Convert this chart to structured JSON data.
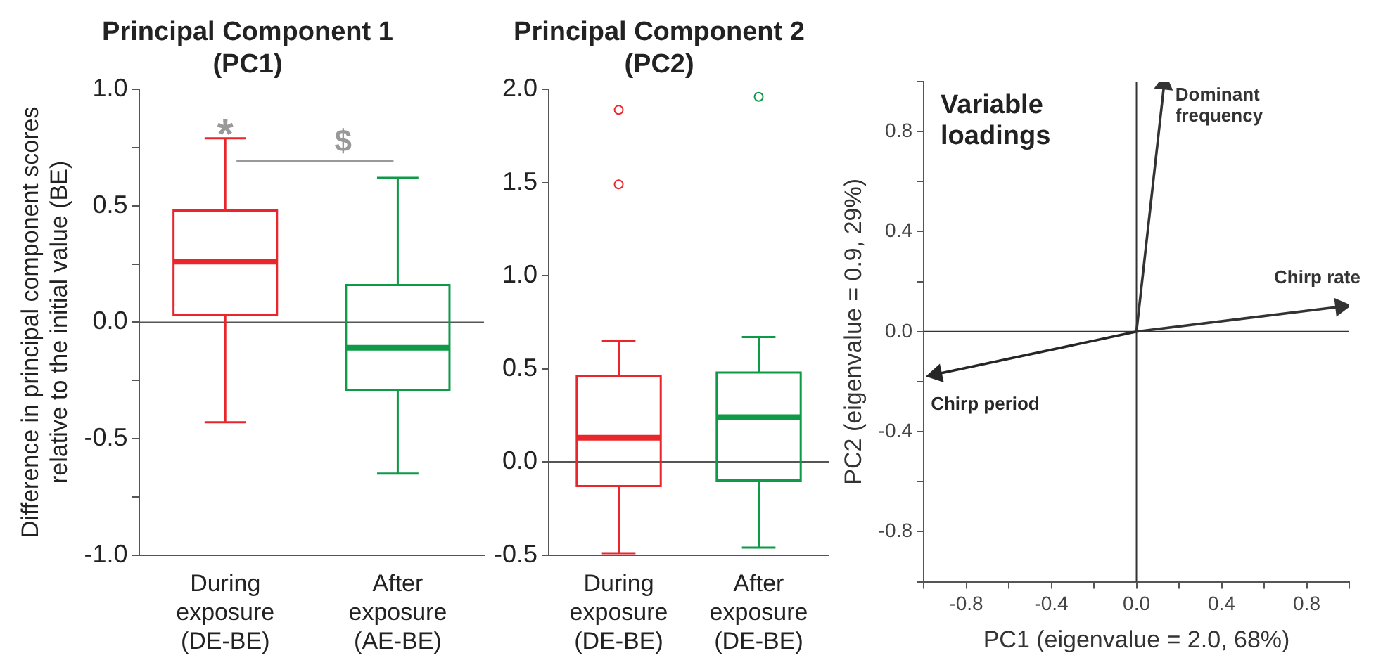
{
  "chart_data": [
    {
      "type": "box",
      "title": "Principal Component 1 (PC1)",
      "ylabel": "Difference in principal component scores relative to the initial value (BE)",
      "categories": [
        "During exposure (DE-BE)",
        "After exposure (AE-BE)"
      ],
      "colors": [
        "#e8262b",
        "#0f9a48"
      ],
      "boxes": [
        {
          "low": -0.43,
          "q1": 0.03,
          "median": 0.26,
          "q3": 0.48,
          "high": 0.79
        },
        {
          "low": -0.65,
          "q1": -0.29,
          "median": -0.11,
          "q3": 0.16,
          "high": 0.62
        }
      ],
      "ylim": [
        -1.0,
        1.0
      ],
      "yticks": [
        {
          "value": -1,
          "label": "-1.0"
        },
        {
          "value": -0.75,
          "label": null
        },
        {
          "value": -0.5,
          "label": "-0.5"
        },
        {
          "value": -0.25,
          "label": null
        },
        {
          "value": 0,
          "label": "0.0"
        },
        {
          "value": 0.25,
          "label": null
        },
        {
          "value": 0.5,
          "label": "0.5"
        },
        {
          "value": 0.75,
          "label": null
        },
        {
          "value": 1,
          "label": "1.0"
        }
      ],
      "ref_lines": [
        {
          "axis": "y",
          "value": 0,
          "color": "#555555"
        }
      ],
      "annotations": [
        "*",
        "$"
      ],
      "grid": false,
      "legend": false
    },
    {
      "type": "box",
      "title": "Principal Component 2 (PC2)",
      "categories": [
        "During exposure (DE-BE)",
        "After exposure (DE-BE)"
      ],
      "colors": [
        "#e8262b",
        "#0f9a48"
      ],
      "boxes": [
        {
          "low": -0.49,
          "q1": -0.13,
          "median": 0.13,
          "q3": 0.46,
          "high": 0.65,
          "outliers": [
            1.49,
            1.89
          ]
        },
        {
          "low": -0.46,
          "q1": -0.1,
          "median": 0.24,
          "q3": 0.48,
          "high": 0.67,
          "outliers": [
            1.96
          ]
        }
      ],
      "ylim": [
        -0.5,
        2.0
      ],
      "yticks": [
        {
          "value": -0.5,
          "label": "-0.5"
        },
        {
          "value": 0,
          "label": "0.0"
        },
        {
          "value": 0.5,
          "label": "0.5"
        },
        {
          "value": 1,
          "label": "1.0"
        },
        {
          "value": 1.5,
          "label": "1.5"
        },
        {
          "value": 2,
          "label": "2.0"
        }
      ],
      "ref_lines": [
        {
          "axis": "y",
          "value": 0,
          "color": "#555555"
        }
      ],
      "grid": false,
      "legend": false
    },
    {
      "type": "line",
      "title": "Variable loadings",
      "xlabel": "PC1 (eigenvalue = 2.0, 68%)",
      "ylabel": "PC2 (eigenvalue = 0.9, 29%)",
      "series": [
        {
          "name": "Chirp rate",
          "color": "#333333",
          "x": [
            0,
            0.96
          ],
          "values": [
            0,
            0.1
          ]
        },
        {
          "name": "Dominant frequency",
          "color": "#333333",
          "x": [
            0,
            0.13
          ],
          "values": [
            0,
            0.99
          ]
        },
        {
          "name": "Chirp period",
          "color": "#262626",
          "x": [
            0,
            -0.94
          ],
          "values": [
            0,
            -0.17
          ]
        }
      ],
      "xlim": [
        -1,
        1
      ],
      "xticks": [
        {
          "value": -1,
          "label": null
        },
        {
          "value": -0.8,
          "label": "-0.8"
        },
        {
          "value": -0.6,
          "label": null
        },
        {
          "value": -0.4,
          "label": "-0.4"
        },
        {
          "value": -0.2,
          "label": null
        },
        {
          "value": 0,
          "label": "0.0"
        },
        {
          "value": 0.2,
          "label": null
        },
        {
          "value": 0.4,
          "label": "0.4"
        },
        {
          "value": 0.6,
          "label": null
        },
        {
          "value": 0.8,
          "label": "0.8"
        },
        {
          "value": 1,
          "label": null
        }
      ],
      "ylim": [
        -1,
        1
      ],
      "yticks": [
        {
          "value": -1,
          "label": null
        },
        {
          "value": -0.8,
          "label": "-0.8"
        },
        {
          "value": -0.6,
          "label": null
        },
        {
          "value": -0.4,
          "label": "-0.4"
        },
        {
          "value": -0.2,
          "label": null
        },
        {
          "value": 0,
          "label": "0.0"
        },
        {
          "value": 0.2,
          "label": null
        },
        {
          "value": 0.4,
          "label": "0.4"
        },
        {
          "value": 0.6,
          "label": null
        },
        {
          "value": 0.8,
          "label": "0.8"
        },
        {
          "value": 1,
          "label": null
        }
      ],
      "ref_lines": [
        {
          "axis": "x",
          "value": 0,
          "color": "#333333"
        },
        {
          "axis": "y",
          "value": 0,
          "color": "#333333"
        }
      ],
      "grid": false
    }
  ]
}
